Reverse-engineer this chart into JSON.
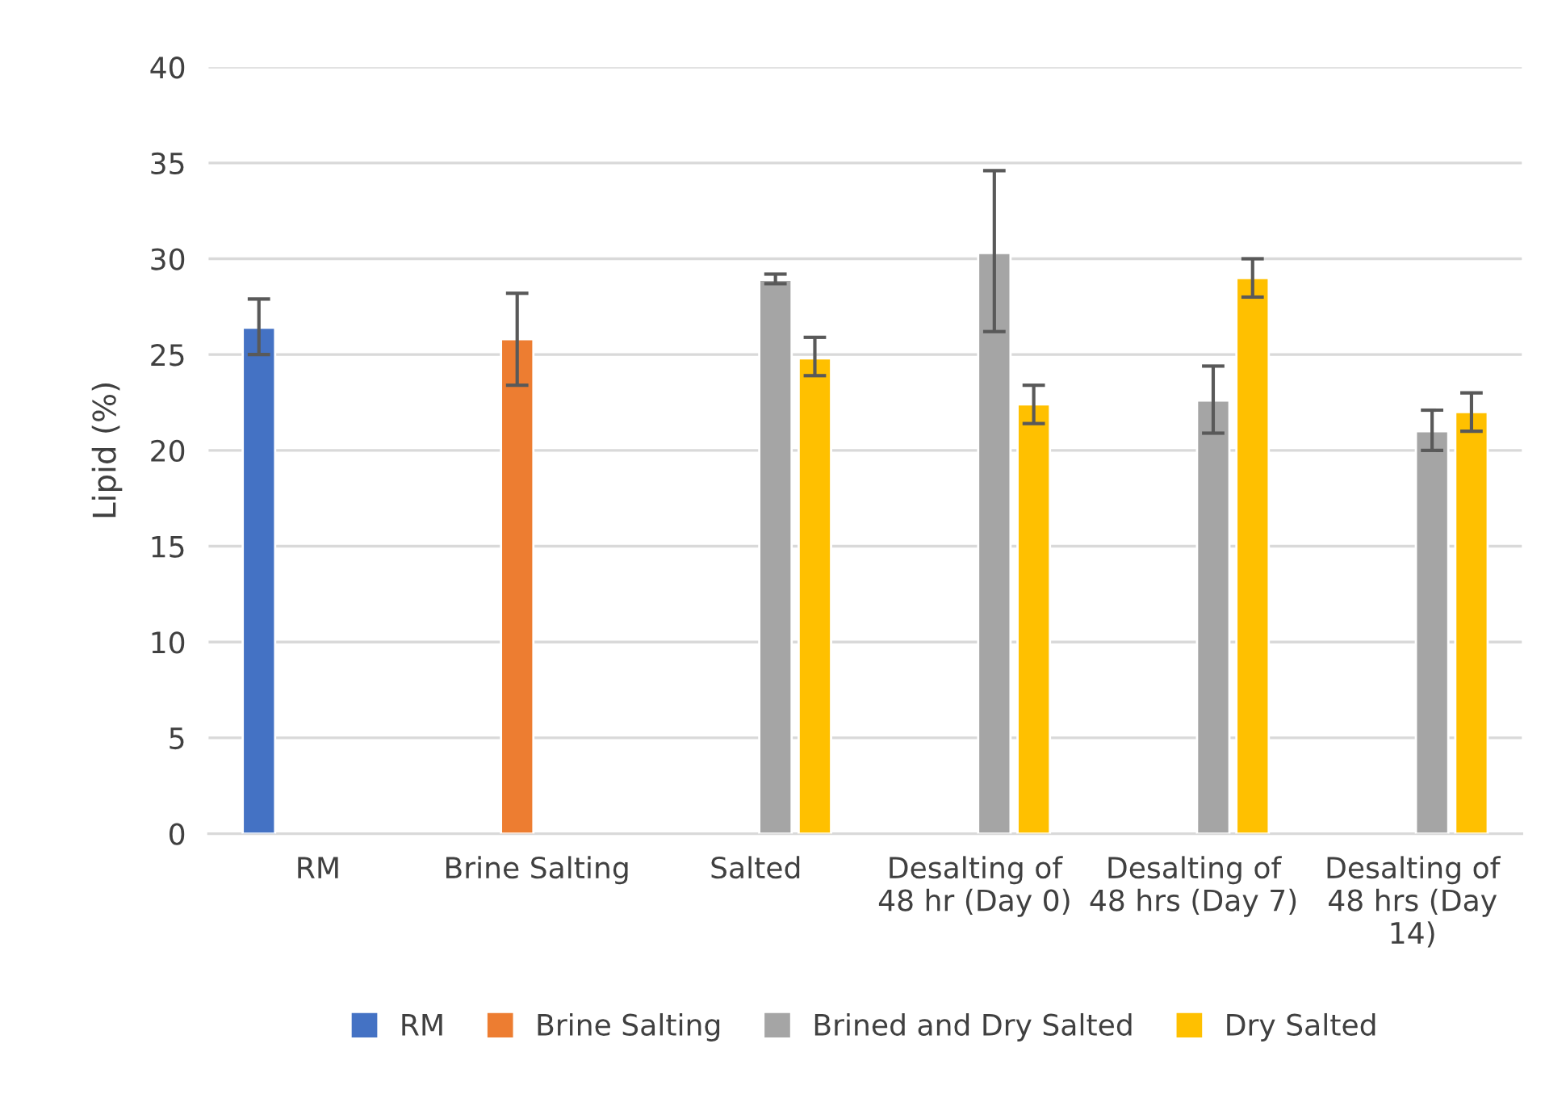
{
  "chart_data": {
    "type": "bar",
    "categories": [
      "RM",
      "Brine Salting",
      "Salted",
      "Desalting of 48 hr (Day 0)",
      "Desalting of 48 hrs (Day 7)",
      "Desalting of 48 hrs (Day 14)"
    ],
    "ylabel": "Lipid (%)",
    "ylim": [
      0,
      40
    ],
    "yticks": [
      0,
      5,
      10,
      15,
      20,
      25,
      30,
      35,
      40
    ],
    "grid": "y",
    "legend": "bottom",
    "series": [
      {
        "name": "RM",
        "color": "#4472c4",
        "values": [
          26.4,
          null,
          null,
          null,
          null,
          null
        ],
        "errors": [
          [
            25.0,
            27.9
          ],
          null,
          null,
          null,
          null,
          null
        ]
      },
      {
        "name": "Brine Salting",
        "color": "#ed7d31",
        "values": [
          null,
          25.8,
          null,
          null,
          null,
          null
        ],
        "errors": [
          null,
          [
            23.4,
            28.2
          ],
          null,
          null,
          null,
          null
        ]
      },
      {
        "name": "Brined and Dry Salted",
        "color": "#a5a5a5",
        "values": [
          null,
          null,
          28.9,
          30.3,
          22.6,
          21.0
        ],
        "errors": [
          null,
          null,
          [
            28.7,
            29.2
          ],
          [
            26.2,
            34.6
          ],
          [
            20.9,
            24.4
          ],
          [
            20.0,
            22.1
          ]
        ]
      },
      {
        "name": "Dry Salted",
        "color": "#ffc000",
        "values": [
          null,
          null,
          24.8,
          22.4,
          29.0,
          22.0
        ],
        "errors": [
          null,
          null,
          [
            23.9,
            25.9
          ],
          [
            21.4,
            23.4
          ],
          [
            28.0,
            30.0
          ],
          [
            21.0,
            23.0
          ]
        ]
      }
    ]
  }
}
